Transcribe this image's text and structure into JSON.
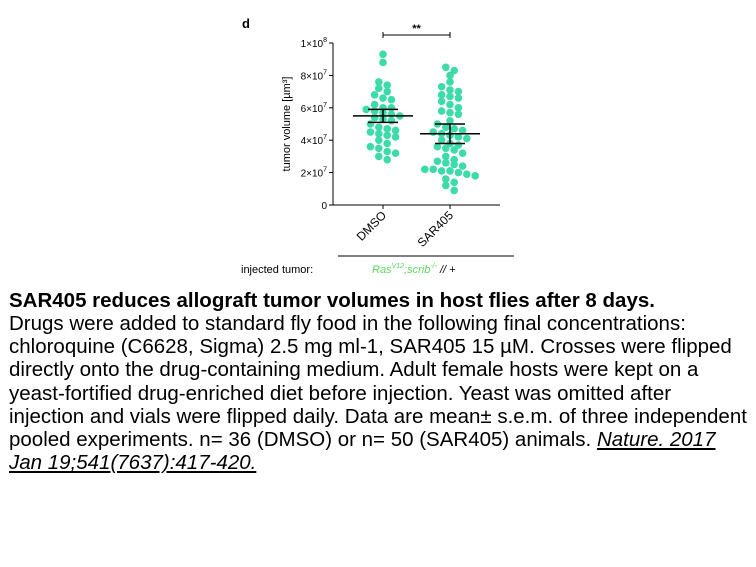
{
  "chart_data": {
    "type": "scatter",
    "panel_label": "d",
    "ylabel": "tumor volume [µm³]",
    "ylim": [
      0,
      100000000
    ],
    "yticks": [
      {
        "value": 0,
        "base": "0",
        "exp": ""
      },
      {
        "value": 20000000,
        "base": "2×10",
        "exp": "7"
      },
      {
        "value": 40000000,
        "base": "4×10",
        "exp": "7"
      },
      {
        "value": 60000000,
        "base": "6×10",
        "exp": "7"
      },
      {
        "value": 80000000,
        "base": "8×10",
        "exp": "7"
      },
      {
        "value": 100000000,
        "base": "1×10",
        "exp": "8"
      }
    ],
    "categories": [
      "DMSO",
      "SAR405"
    ],
    "point_color": "#3ddba8",
    "significance": "**",
    "group_label": "injected tumor:",
    "genotype": {
      "base1": "Ras",
      "sup1": "V12",
      "base2": ";scrib",
      "sup2": "-/-",
      "suffix": " // +"
    },
    "genotype_color": "#5ad85a",
    "series": [
      {
        "category": "DMSO",
        "mean": 55000000,
        "sem_low": 51000000,
        "sem_high": 59000000,
        "values": [
          93000000,
          88000000,
          76000000,
          74000000,
          72000000,
          70000000,
          68000000,
          66000000,
          65000000,
          62000000,
          60000000,
          60000000,
          59000000,
          58000000,
          57000000,
          56000000,
          55000000,
          54000000,
          53000000,
          52000000,
          50000000,
          48000000,
          47000000,
          46000000,
          45000000,
          44000000,
          43000000,
          42000000,
          40000000,
          38000000,
          36000000,
          35000000,
          33000000,
          32000000,
          30000000,
          28000000
        ]
      },
      {
        "category": "SAR405",
        "mean": 44000000,
        "sem_low": 38000000,
        "sem_high": 50000000,
        "values": [
          85000000,
          83000000,
          80000000,
          76000000,
          73000000,
          71000000,
          70000000,
          68000000,
          67000000,
          66000000,
          64000000,
          62000000,
          60000000,
          58000000,
          57000000,
          56000000,
          52000000,
          50000000,
          48000000,
          47000000,
          46000000,
          45000000,
          44000000,
          43000000,
          42000000,
          41000000,
          40000000,
          38000000,
          37000000,
          36000000,
          35000000,
          34000000,
          32000000,
          30000000,
          28000000,
          27000000,
          26000000,
          25000000,
          24000000,
          22000000,
          22000000,
          21000000,
          21000000,
          20000000,
          19000000,
          18000000,
          16000000,
          14000000,
          12000000,
          9000000
        ]
      }
    ]
  },
  "caption": {
    "title": "SAR405 reduces allograft tumor volumes in host flies after 8 days.",
    "body": "Drugs were added to standard fly food in the following final concentrations: chloroquine (C6628, Sigma) 2.5 mg ml-1, SAR405 15 µM. Crosses were flipped directly onto the drug-containing medium. Adult female hosts were kept on a yeast-fortified drug-enriched diet before injection. Yeast was omitted after injection and vials were flipped daily. Data are mean± s.e.m. of three independent pooled experiments. n= 36 (DMSO) or n= 50 (SAR405) animals.",
    "reference": "Nature. 2017 Jan 19;541(7637):417-420."
  }
}
